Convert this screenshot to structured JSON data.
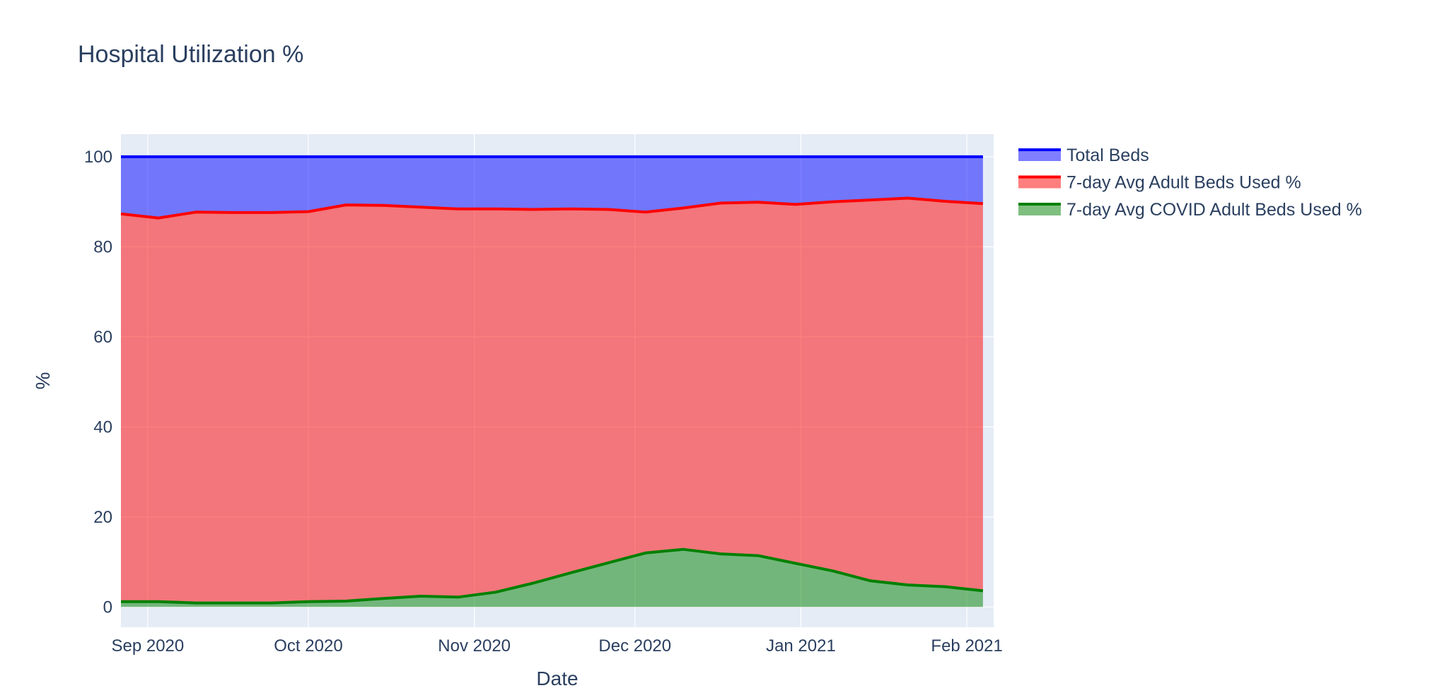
{
  "chart_data": {
    "type": "area",
    "title": "Hospital Utilization %",
    "xlabel": "Date",
    "ylabel": "%",
    "x_range": [
      "2020-08-27",
      "2021-02-06"
    ],
    "ylim": [
      -4.5,
      105
    ],
    "y_ticks": [
      0,
      20,
      40,
      60,
      80,
      100
    ],
    "x_ticks": [
      {
        "date": "2020-09-01",
        "label": "Sep 2020"
      },
      {
        "date": "2020-10-01",
        "label": "Oct 2020"
      },
      {
        "date": "2020-11-01",
        "label": "Nov 2020"
      },
      {
        "date": "2020-12-01",
        "label": "Dec 2020"
      },
      {
        "date": "2021-01-01",
        "label": "Jan 2021"
      },
      {
        "date": "2021-02-01",
        "label": "Feb 2021"
      }
    ],
    "grid": true,
    "legend_position": "right",
    "x": [
      "2020-08-27",
      "2020-09-03",
      "2020-09-10",
      "2020-09-17",
      "2020-09-24",
      "2020-10-01",
      "2020-10-08",
      "2020-10-15",
      "2020-10-22",
      "2020-10-29",
      "2020-11-05",
      "2020-11-12",
      "2020-11-19",
      "2020-11-26",
      "2020-12-03",
      "2020-12-10",
      "2020-12-17",
      "2020-12-24",
      "2020-12-31",
      "2021-01-07",
      "2021-01-14",
      "2021-01-21",
      "2021-01-28",
      "2021-02-04"
    ],
    "series": [
      {
        "name": "Total Beds",
        "color": "#0000ff",
        "fill": "rgba(0,0,255,0.5)",
        "values": [
          100,
          100,
          100,
          100,
          100,
          100,
          100,
          100,
          100,
          100,
          100,
          100,
          100,
          100,
          100,
          100,
          100,
          100,
          100,
          100,
          100,
          100,
          100,
          100
        ]
      },
      {
        "name": "7-day Avg Adult Beds Used %",
        "color": "#ff0000",
        "fill": "rgba(255,0,0,0.5)",
        "values": [
          87.3,
          86.4,
          87.7,
          87.6,
          87.6,
          87.8,
          89.3,
          89.2,
          88.8,
          88.4,
          88.4,
          88.3,
          88.4,
          88.3,
          87.7,
          88.6,
          89.7,
          89.9,
          89.4,
          90.0,
          90.4,
          90.8,
          90.1,
          89.6
        ]
      },
      {
        "name": "7-day Avg COVID Adult Beds Used %",
        "color": "#008000",
        "fill": "rgba(0,128,0,0.5)",
        "values": [
          1.2,
          1.2,
          0.9,
          0.9,
          0.9,
          1.2,
          1.3,
          1.9,
          2.4,
          2.2,
          3.3,
          5.3,
          7.6,
          9.8,
          12.0,
          12.8,
          11.8,
          11.4,
          9.7,
          8.0,
          5.8,
          4.9,
          4.5,
          3.6
        ]
      }
    ]
  }
}
